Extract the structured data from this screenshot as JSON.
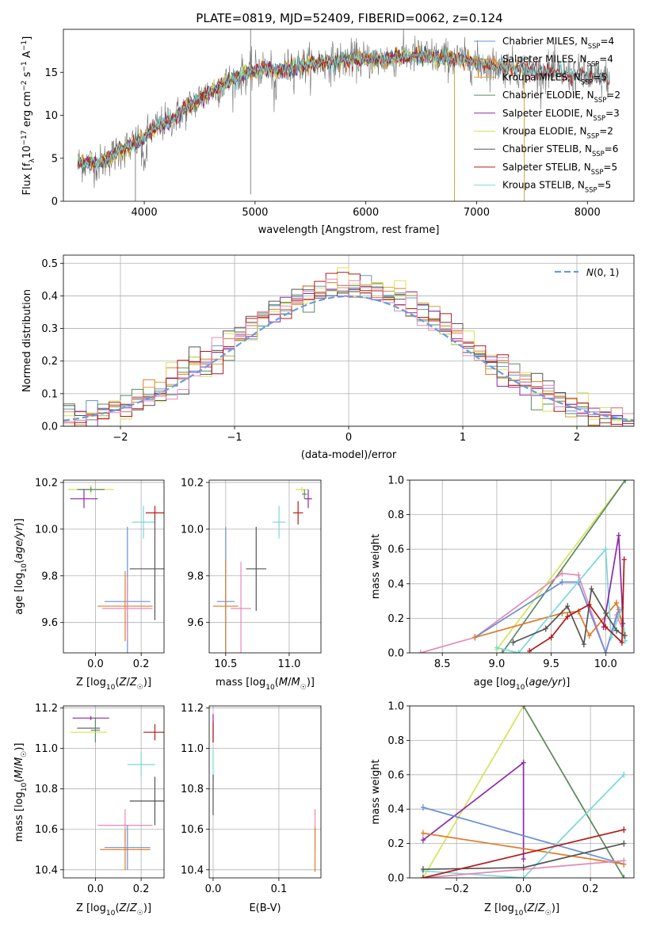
{
  "title": "PLATE=0819, MJD=52409, FIBERID=0062, z=0.124",
  "colors": {
    "Chabrier MILES": "#6a8fd8",
    "Salpeter MILES": "#e07b2a",
    "Kroupa MILES": "#d9a23a",
    "Chabrier ELODIE": "#5a8a64",
    "Salpeter ELODIE": "#8e2aa8",
    "Kroupa ELODIE": "#d6e356",
    "Chabrier STELIB": "#555555",
    "Salpeter STELIB": "#b01c1c",
    "Kroupa STELIB": "#79d8d8",
    "pink": "#e48ab8",
    "normal": "#6b9be0"
  },
  "chart_data": [
    {
      "type": "line",
      "name": "spectrum",
      "xlabel": "wavelength [Angstrom, rest frame]",
      "ylabel": "Flux [fλ10⁻¹⁷ erg cm⁻² s⁻¹ A⁻¹]",
      "xlim": [
        3270,
        8420
      ],
      "ylim": [
        0,
        20
      ],
      "xticks": [
        4000,
        5000,
        6000,
        7000,
        8000
      ],
      "yticks": [
        0,
        5,
        10,
        15
      ],
      "legend": "top-right",
      "legend_entries": [
        {
          "label": "Chabrier MILES, N",
          "sub": "SSP",
          "tail": "=4"
        },
        {
          "label": "Salpeter MILES, N",
          "sub": "SSP",
          "tail": "=4"
        },
        {
          "label": "Kroupa MILES, N",
          "sub": "SSP",
          "tail": "=5"
        },
        {
          "label": "Chabrier ELODIE, N",
          "sub": "SSP",
          "tail": "=2"
        },
        {
          "label": "Salpeter ELODIE, N",
          "sub": "SSP",
          "tail": "=3"
        },
        {
          "label": "Kroupa ELODIE, N",
          "sub": "SSP",
          "tail": "=2"
        },
        {
          "label": "Chabrier STELIB, N",
          "sub": "SSP",
          "tail": "=6"
        },
        {
          "label": "Salpeter STELIB, N",
          "sub": "SSP",
          "tail": "=5"
        },
        {
          "label": "Kroupa STELIB, N",
          "sub": "SSP",
          "tail": "=5"
        }
      ],
      "continuum": [
        [
          3400,
          4.5
        ],
        [
          3600,
          4.4
        ],
        [
          3800,
          6.0
        ],
        [
          3950,
          7.0
        ],
        [
          4100,
          8.5
        ],
        [
          4300,
          10.0
        ],
        [
          4500,
          12.0
        ],
        [
          4700,
          13.5
        ],
        [
          4900,
          14.8
        ],
        [
          5100,
          15.5
        ],
        [
          5200,
          15.0
        ],
        [
          5300,
          15.5
        ],
        [
          5500,
          16.0
        ],
        [
          5700,
          16.2
        ],
        [
          5900,
          16.5
        ],
        [
          6100,
          16.4
        ],
        [
          6300,
          16.8
        ],
        [
          6500,
          17.0
        ],
        [
          6700,
          16.7
        ],
        [
          6900,
          16.4
        ],
        [
          7100,
          15.8
        ],
        [
          7300,
          15.6
        ],
        [
          7500,
          15.2
        ],
        [
          7800,
          14.8
        ],
        [
          8000,
          14.5
        ],
        [
          8200,
          14.2
        ]
      ]
    },
    {
      "type": "line",
      "name": "residual-histogram",
      "xlabel": "(data-model)/error",
      "ylabel": "Normed distribution",
      "xlim": [
        -2.5,
        2.5
      ],
      "ylim": [
        0,
        0.525
      ],
      "xticks": [
        -2,
        -1,
        0,
        1,
        2
      ],
      "yticks": [
        0.0,
        0.1,
        0.2,
        0.3,
        0.4,
        0.5
      ],
      "legend": "top-right",
      "legend_label": "N(0,1)",
      "bin_width": 0.1
    },
    {
      "type": "scatter",
      "name": "age-vs-Z",
      "xlabel": "Z [log10(Z/Z☉)]",
      "ylabel": "age [log10(age/yr)]",
      "xlim": [
        -0.14,
        0.3
      ],
      "ylim": [
        9.47,
        10.21
      ],
      "xticks": [
        0.0,
        0.2
      ],
      "yticks": [
        9.6,
        9.8,
        10.0,
        10.2
      ],
      "points": [
        {
          "series": "Kroupa ELODIE",
          "x": -0.02,
          "y": 10.17,
          "xe": 0.1,
          "ye": 0.02
        },
        {
          "series": "Chabrier ELODIE",
          "x": -0.02,
          "y": 10.17,
          "xe": 0.06,
          "ye": 0.01
        },
        {
          "series": "Salpeter ELODIE",
          "x": -0.05,
          "y": 10.13,
          "xe": 0.06,
          "ye": 0.04
        },
        {
          "series": "Salpeter STELIB",
          "x": 0.26,
          "y": 10.07,
          "xe": 0.04,
          "ye": 0.03
        },
        {
          "series": "Kroupa STELIB",
          "x": 0.21,
          "y": 10.03,
          "xe": 0.05,
          "ye": 0.07
        },
        {
          "series": "Chabrier STELIB",
          "x": 0.26,
          "y": 9.83,
          "xe": 0.11,
          "ye": 0.22
        },
        {
          "series": "Chabrier MILES",
          "x": 0.14,
          "y": 9.69,
          "xe": 0.1,
          "ye": 0.32
        },
        {
          "series": "Salpeter MILES",
          "x": 0.13,
          "y": 9.67,
          "xe": 0.12,
          "ye": 0.15
        },
        {
          "series": "pink",
          "x": 0.14,
          "y": 9.66,
          "xe": 0.11,
          "ye": 0.13
        }
      ]
    },
    {
      "type": "scatter",
      "name": "age-vs-mass",
      "xlabel": "mass [log10(M/M☉)]",
      "ylabel": "",
      "xlim": [
        10.37,
        11.25
      ],
      "ylim": [
        9.47,
        10.21
      ],
      "xticks": [
        10.5,
        11.0
      ],
      "yticks": [
        9.6,
        9.8,
        10.0,
        10.2
      ],
      "points": [
        {
          "series": "Kroupa ELODIE",
          "x": 11.1,
          "y": 10.17,
          "xe": 0.05,
          "ye": 0.01
        },
        {
          "series": "Salpeter ELODIE",
          "x": 11.15,
          "y": 10.13,
          "xe": 0.03,
          "ye": 0.04
        },
        {
          "series": "Chabrier ELODIE",
          "x": 11.12,
          "y": 10.15,
          "xe": 0.02,
          "ye": 0.02
        },
        {
          "series": "Salpeter STELIB",
          "x": 11.07,
          "y": 10.07,
          "xe": 0.04,
          "ye": 0.05
        },
        {
          "series": "Kroupa STELIB",
          "x": 10.92,
          "y": 10.03,
          "xe": 0.05,
          "ye": 0.07
        },
        {
          "series": "Chabrier STELIB",
          "x": 10.74,
          "y": 9.83,
          "xe": 0.08,
          "ye": 0.18
        },
        {
          "series": "Chabrier MILES",
          "x": 10.5,
          "y": 9.69,
          "xe": 0.07,
          "ye": 0.32
        },
        {
          "series": "Salpeter MILES",
          "x": 10.5,
          "y": 9.67,
          "xe": 0.1,
          "ye": 0.2
        },
        {
          "series": "pink",
          "x": 10.62,
          "y": 9.66,
          "xe": 0.08,
          "ye": 0.2
        }
      ]
    },
    {
      "type": "line",
      "name": "weight-vs-age",
      "xlabel": "age [log10(age/yr)]",
      "ylabel": "mass weight",
      "xlim": [
        8.2,
        10.26
      ],
      "ylim": [
        0,
        1.0
      ],
      "xticks": [
        8.5,
        9.0,
        9.5,
        10.0
      ],
      "yticks": [
        0.0,
        0.2,
        0.4,
        0.6,
        0.8,
        1.0
      ],
      "series": [
        {
          "name": "Kroupa ELODIE",
          "points": [
            [
              9.0,
              0.02
            ],
            [
              10.18,
              1.0
            ]
          ]
        },
        {
          "name": "Chabrier ELODIE",
          "points": [
            [
              9.05,
              0.0
            ],
            [
              10.18,
              1.0
            ]
          ]
        },
        {
          "name": "pink",
          "points": [
            [
              8.3,
              0.0
            ],
            [
              8.8,
              0.09
            ],
            [
              9.6,
              0.46
            ],
            [
              9.75,
              0.45
            ],
            [
              10.0,
              0.0
            ],
            [
              10.1,
              0.22
            ],
            [
              10.18,
              0.1
            ]
          ]
        },
        {
          "name": "Chabrier MILES",
          "points": [
            [
              8.8,
              0.09
            ],
            [
              9.6,
              0.41
            ],
            [
              9.75,
              0.41
            ],
            [
              10.0,
              0.0
            ],
            [
              10.12,
              0.25
            ],
            [
              10.18,
              0.1
            ]
          ]
        },
        {
          "name": "Salpeter MILES",
          "points": [
            [
              8.8,
              0.09
            ],
            [
              9.6,
              0.23
            ],
            [
              9.75,
              0.24
            ],
            [
              9.85,
              0.1
            ],
            [
              10.1,
              0.29
            ],
            [
              10.18,
              0.1
            ]
          ]
        },
        {
          "name": "Kroupa STELIB",
          "points": [
            [
              9.0,
              0.03
            ],
            [
              9.2,
              0.0
            ],
            [
              10.0,
              0.6
            ],
            [
              10.05,
              0.09
            ],
            [
              10.15,
              0.26
            ],
            [
              10.18,
              0.07
            ]
          ]
        },
        {
          "name": "Salpeter ELODIE",
          "points": [
            [
              9.98,
              0.15
            ],
            [
              10.12,
              0.68
            ],
            [
              10.16,
              0.17
            ]
          ]
        },
        {
          "name": "Chabrier STELIB",
          "points": [
            [
              9.15,
              0.06
            ],
            [
              9.45,
              0.14
            ],
            [
              9.65,
              0.27
            ],
            [
              9.8,
              0.05
            ],
            [
              9.87,
              0.37
            ],
            [
              10.0,
              0.23
            ],
            [
              10.1,
              0.13
            ],
            [
              10.17,
              0.1
            ]
          ]
        },
        {
          "name": "Salpeter STELIB",
          "points": [
            [
              9.3,
              0.01
            ],
            [
              9.5,
              0.09
            ],
            [
              9.65,
              0.21
            ],
            [
              9.85,
              0.28
            ],
            [
              10.0,
              0.15
            ],
            [
              10.15,
              0.06
            ],
            [
              10.17,
              0.54
            ]
          ]
        }
      ]
    },
    {
      "type": "scatter",
      "name": "mass-vs-Z",
      "xlabel": "Z [log10(Z/Z☉)]",
      "ylabel": "mass [log10(M/M☉)]",
      "xlim": [
        -0.14,
        0.3
      ],
      "ylim": [
        10.36,
        11.21
      ],
      "xticks": [
        0.0,
        0.2
      ],
      "yticks": [
        10.4,
        10.6,
        10.8,
        11.0,
        11.2
      ],
      "points": [
        {
          "series": "Salpeter ELODIE",
          "x": -0.02,
          "y": 11.15,
          "xe": 0.08,
          "ye": 0.01
        },
        {
          "series": "Chabrier STELIB",
          "x": -0.03,
          "y": 11.1,
          "xe": 0.05,
          "ye": 0.0
        },
        {
          "series": "Chabrier ELODIE",
          "x": 0.0,
          "y": 11.09,
          "xe": 0.02,
          "ye": 0.06
        },
        {
          "series": "Kroupa ELODIE",
          "x": -0.03,
          "y": 11.08,
          "xe": 0.08,
          "ye": 0.0
        },
        {
          "series": "Salpeter STELIB",
          "x": 0.26,
          "y": 11.08,
          "xe": 0.05,
          "ye": 0.04
        },
        {
          "series": "Kroupa STELIB",
          "x": 0.2,
          "y": 10.92,
          "xe": 0.06,
          "ye": 0.06
        },
        {
          "series": "Chabrier STELIB",
          "x": 0.26,
          "y": 10.74,
          "xe": 0.11,
          "ye": 0.12
        },
        {
          "series": "pink",
          "x": 0.13,
          "y": 10.62,
          "xe": 0.12,
          "ye": 0.08
        },
        {
          "series": "Chabrier MILES",
          "x": 0.14,
          "y": 10.51,
          "xe": 0.1,
          "ye": 0.11
        },
        {
          "series": "Salpeter MILES",
          "x": 0.13,
          "y": 10.5,
          "xe": 0.11,
          "ye": 0.1
        }
      ]
    },
    {
      "type": "scatter",
      "name": "mass-vs-EBV",
      "xlabel": "E(B-V)",
      "ylabel": "",
      "xlim": [
        -0.006,
        0.164
      ],
      "ylim": [
        10.36,
        11.21
      ],
      "xticks": [
        0.0,
        0.1
      ],
      "yticks": [
        10.4,
        10.6,
        10.8,
        11.0,
        11.2
      ],
      "points": [
        {
          "series": "Salpeter ELODIE",
          "x": 0.0,
          "y": 11.1,
          "xe": 0.0,
          "ye": 0.07
        },
        {
          "series": "Salpeter STELIB",
          "x": 0.0,
          "y": 11.08,
          "xe": 0.0,
          "ye": 0.05
        },
        {
          "series": "Kroupa STELIB",
          "x": 0.0,
          "y": 10.92,
          "xe": 0.0,
          "ye": 0.07
        },
        {
          "series": "Chabrier STELIB",
          "x": 0.0,
          "y": 10.77,
          "xe": 0.0,
          "ye": 0.1
        },
        {
          "series": "pink",
          "x": 0.155,
          "y": 10.6,
          "xe": 0.0,
          "ye": 0.1
        },
        {
          "series": "Salpeter MILES",
          "x": 0.155,
          "y": 10.5,
          "xe": 0.0,
          "ye": 0.11
        }
      ]
    },
    {
      "type": "line",
      "name": "weight-vs-Z",
      "xlabel": "Z [log10(Z/Z☉)]",
      "ylabel": "mass weight",
      "xlim": [
        -0.34,
        0.33
      ],
      "ylim": [
        0,
        1.0
      ],
      "xticks": [
        -0.2,
        0.0,
        0.2
      ],
      "yticks": [
        0.0,
        0.2,
        0.4,
        0.6,
        0.8,
        1.0
      ],
      "series": [
        {
          "name": "Kroupa ELODIE",
          "points": [
            [
              -0.3,
              0.0
            ],
            [
              0.0,
              1.0
            ],
            [
              0.3,
              0.0
            ]
          ]
        },
        {
          "name": "Chabrier ELODIE",
          "points": [
            [
              0.0,
              1.0
            ],
            [
              0.3,
              0.0
            ]
          ]
        },
        {
          "name": "Salpeter ELODIE",
          "points": [
            [
              -0.3,
              0.22
            ],
            [
              0.0,
              0.67
            ],
            [
              0.0,
              0.11
            ]
          ]
        },
        {
          "name": "Chabrier MILES",
          "points": [
            [
              -0.3,
              0.41
            ],
            [
              0.3,
              0.08
            ]
          ]
        },
        {
          "name": "Salpeter MILES",
          "points": [
            [
              -0.3,
              0.26
            ],
            [
              0.3,
              0.08
            ]
          ]
        },
        {
          "name": "Kroupa STELIB",
          "points": [
            [
              -0.3,
              0.04
            ],
            [
              0.0,
              0.0
            ],
            [
              0.3,
              0.6
            ]
          ]
        },
        {
          "name": "pink",
          "points": [
            [
              -0.3,
              0.0
            ],
            [
              0.3,
              0.1
            ]
          ]
        },
        {
          "name": "Chabrier STELIB",
          "points": [
            [
              -0.3,
              0.05
            ],
            [
              0.0,
              0.06
            ],
            [
              0.3,
              0.2
            ]
          ]
        },
        {
          "name": "Salpeter STELIB",
          "points": [
            [
              -0.3,
              0.0
            ],
            [
              0.3,
              0.28
            ]
          ]
        }
      ]
    }
  ]
}
